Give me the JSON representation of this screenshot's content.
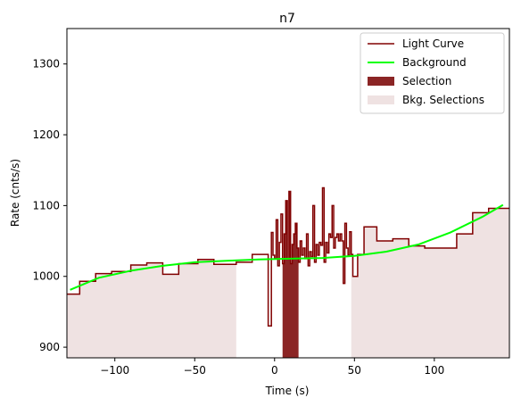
{
  "chart_data": {
    "type": "line",
    "title": "n7",
    "xlabel": "Time (s)",
    "ylabel": "Rate (cnts/s)",
    "xlim": [
      -130,
      147
    ],
    "ylim": [
      885,
      1350
    ],
    "x_ticks": [
      -100,
      -50,
      0,
      50,
      100
    ],
    "x_tick_labels": [
      "−100",
      "−50",
      "0",
      "50",
      "100"
    ],
    "y_ticks": [
      900,
      1000,
      1100,
      1200,
      1300
    ],
    "y_tick_labels": [
      "900",
      "1000",
      "1100",
      "1200",
      "1300"
    ],
    "legend_position": "top-right",
    "colors": {
      "light_curve": "#800000",
      "background": "#00ff00",
      "selection": "#8b2525",
      "bkg_selection": "#efe2e2"
    },
    "series": [
      {
        "name": "Light Curve",
        "kind": "step",
        "x": [
          -130,
          -122,
          -112,
          -102,
          -90,
          -80,
          -70,
          -60,
          -48,
          -38,
          -24,
          -14,
          -4,
          -2,
          -1,
          0,
          1,
          2,
          3,
          4,
          5,
          6,
          7,
          8,
          9,
          10,
          11,
          12,
          13,
          14,
          15,
          16,
          17,
          18,
          19,
          20,
          21,
          22,
          23,
          24,
          25,
          26,
          27,
          28,
          29,
          30,
          31,
          32,
          33,
          34,
          35,
          36,
          37,
          38,
          39,
          40,
          41,
          42,
          43,
          44,
          45,
          46,
          47,
          48,
          49,
          50,
          52,
          56,
          64,
          74,
          84,
          94,
          104,
          114,
          124,
          134,
          147
        ],
        "values": [
          975,
          993,
          1004,
          1007,
          1016,
          1019,
          1003,
          1018,
          1024,
          1017,
          1020,
          1031,
          930,
          1062,
          1030,
          1025,
          1080,
          1015,
          1048,
          1088,
          1018,
          1060,
          1107,
          1025,
          1120,
          1018,
          1045,
          1060,
          1075,
          1040,
          1020,
          1050,
          1030,
          1040,
          1025,
          1060,
          1015,
          1035,
          1028,
          1100,
          1020,
          1045,
          1030,
          1048,
          1044,
          1125,
          1020,
          1048,
          1033,
          1060,
          1055,
          1100,
          1040,
          1055,
          1060,
          1050,
          1060,
          1050,
          990,
          1075,
          1040,
          1030,
          1063,
          1031,
          1000,
          1000,
          1031,
          1070,
          1050,
          1053,
          1043,
          1040,
          1040,
          1060,
          1090,
          1096,
          1107
        ]
      },
      {
        "name": "Background",
        "kind": "curve",
        "x": [
          -128,
          -110,
          -90,
          -70,
          -50,
          -30,
          -10,
          10,
          30,
          50,
          70,
          90,
          110,
          130,
          143
        ],
        "values": [
          981,
          998,
          1008,
          1015,
          1020,
          1022,
          1024,
          1025,
          1026,
          1029,
          1035,
          1045,
          1062,
          1084,
          1101
        ]
      }
    ],
    "selection": {
      "name": "Selection",
      "x_range": [
        5,
        15
      ]
    },
    "bkg_selections": {
      "name": "Bkg. Selections",
      "ranges": [
        [
          -130,
          -24
        ],
        [
          48,
          147
        ]
      ]
    }
  }
}
